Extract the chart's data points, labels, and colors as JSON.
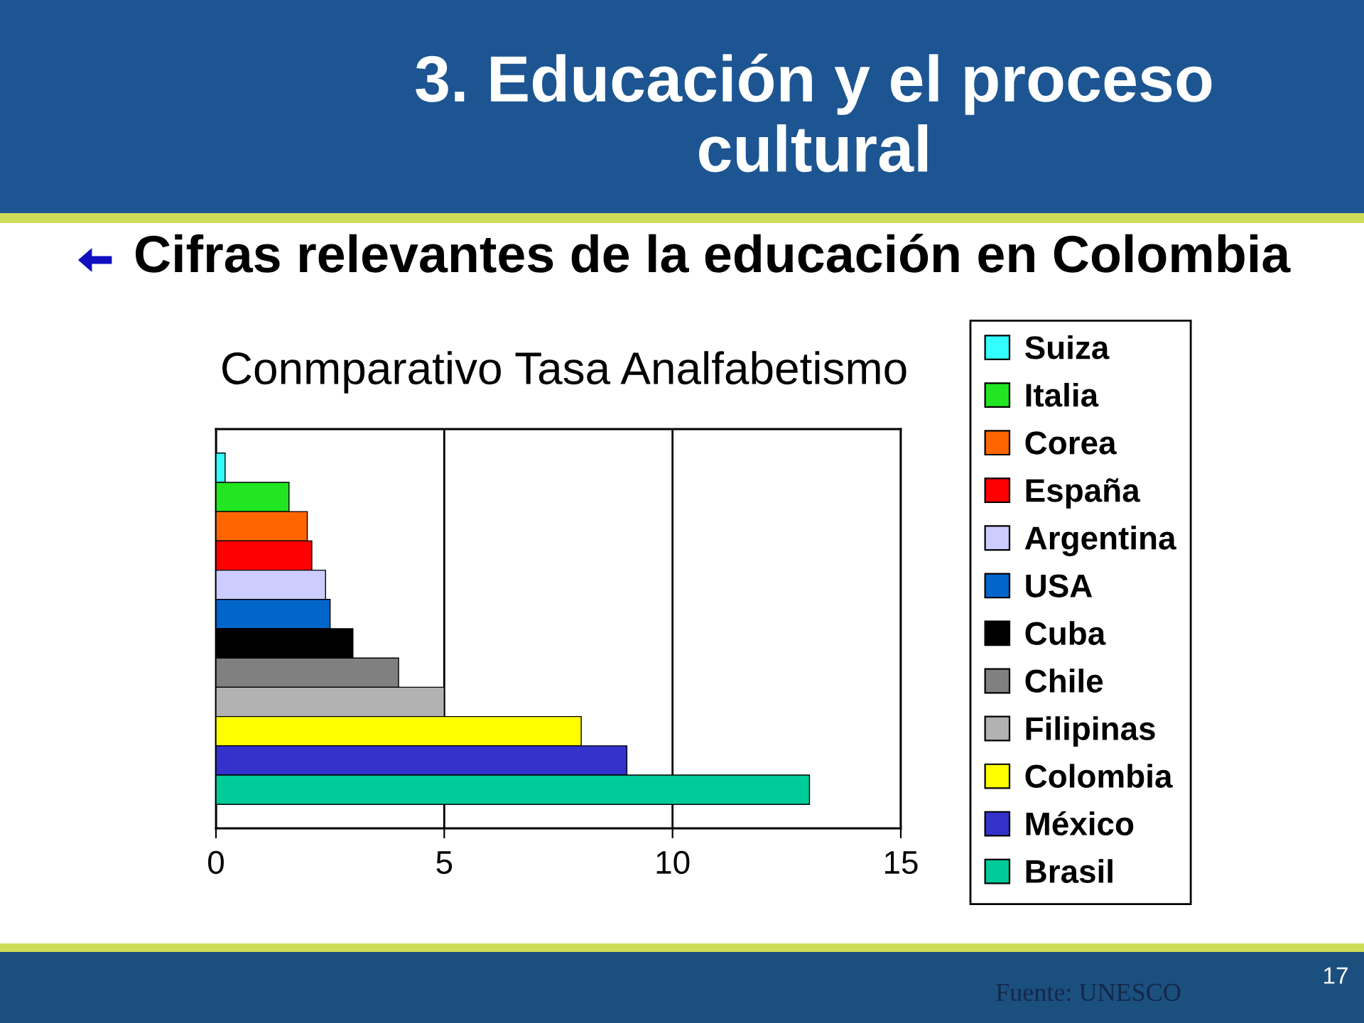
{
  "chart_data": {
    "type": "bar",
    "orientation": "horizontal",
    "title": "3. Educación y el proceso\ncultural",
    "subtitle": "Cifras relevantes de la educación en Colombia",
    "annotations": [
      "Conmparativo Tasa Analfabetismo",
      "Fuente: UNESCO",
      "17"
    ],
    "categories": [
      null
    ],
    "series": [
      {
        "name": "Suiza",
        "color": "#33ffff",
        "values": [
          0.2
        ]
      },
      {
        "name": "Italia",
        "color": "#22e622",
        "values": [
          1.6
        ]
      },
      {
        "name": "Corea",
        "color": "#ff6600",
        "values": [
          2.0
        ]
      },
      {
        "name": "España",
        "color": "#ff0000",
        "values": [
          2.1
        ]
      },
      {
        "name": "Argentina",
        "color": "#ccccff",
        "values": [
          2.4
        ]
      },
      {
        "name": "USA",
        "color": "#0066cc",
        "values": [
          2.5
        ]
      },
      {
        "name": "Cuba",
        "color": "#000000",
        "values": [
          3.0
        ]
      },
      {
        "name": "Chile",
        "color": "#808080",
        "values": [
          4.0
        ]
      },
      {
        "name": "Filipinas",
        "color": "#b2b2b2",
        "values": [
          5.0
        ]
      },
      {
        "name": "Colombia",
        "color": "#ffff00",
        "values": [
          8.0
        ]
      },
      {
        "name": "México",
        "color": "#3333cc",
        "values": [
          9.0
        ]
      },
      {
        "name": "Brasil",
        "color": "#00cc99",
        "values": [
          13.0
        ]
      }
    ],
    "xlim": [
      0,
      15
    ],
    "xticks": [
      0,
      5,
      10,
      15
    ],
    "grid": "x",
    "legend": "right"
  }
}
